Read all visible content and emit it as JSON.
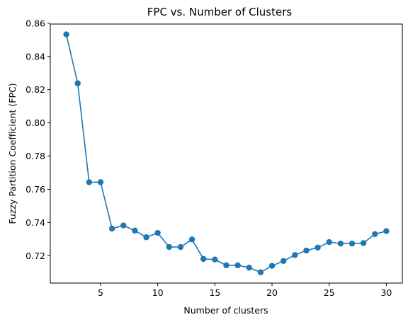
{
  "chart_data": {
    "type": "line",
    "title": "FPC vs. Number of Clusters",
    "xlabel": "Number of clusters",
    "ylabel": "Fuzzy Partition Coefficient (FPC)",
    "xlim": [
      0.6,
      31.4
    ],
    "ylim": [
      0.7035,
      0.8595
    ],
    "xticks": [
      5,
      10,
      15,
      20,
      25,
      30
    ],
    "yticks": [
      0.72,
      0.74,
      0.76,
      0.78,
      0.8,
      0.82,
      0.84,
      0.86
    ],
    "ytick_labels": [
      "0.72",
      "0.74",
      "0.76",
      "0.78",
      "0.80",
      "0.82",
      "0.84",
      "0.86"
    ],
    "grid": false,
    "series": [
      {
        "color": "#1f77b4",
        "marker": "circle",
        "x": [
          2,
          3,
          4,
          5,
          6,
          7,
          8,
          9,
          10,
          11,
          12,
          13,
          14,
          15,
          16,
          17,
          18,
          19,
          20,
          21,
          22,
          23,
          24,
          25,
          26,
          27,
          28,
          29,
          30
        ],
        "y": [
          0.8533,
          0.8238,
          0.7642,
          0.7643,
          0.7363,
          0.7382,
          0.7351,
          0.7311,
          0.7337,
          0.7252,
          0.7252,
          0.7298,
          0.718,
          0.7177,
          0.7142,
          0.7142,
          0.7128,
          0.71,
          0.7139,
          0.7168,
          0.7204,
          0.7231,
          0.7249,
          0.7282,
          0.7273,
          0.7273,
          0.7276,
          0.733,
          0.7348
        ]
      }
    ]
  }
}
